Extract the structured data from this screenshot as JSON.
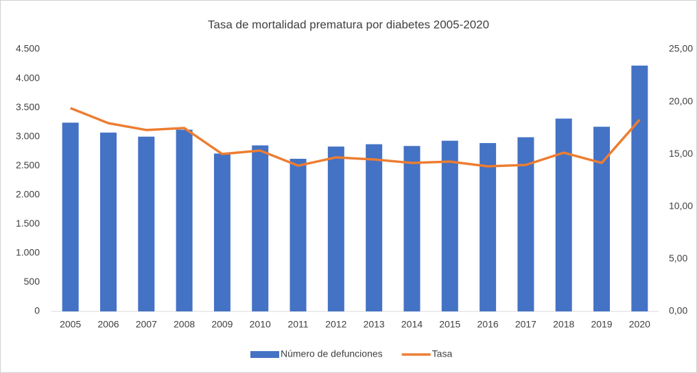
{
  "chart_data": {
    "type": "bar-line",
    "title": "Tasa de mortalidad prematura por diabetes 2005-2020",
    "categories": [
      "2005",
      "2006",
      "2007",
      "2008",
      "2009",
      "2010",
      "2011",
      "2012",
      "2013",
      "2014",
      "2015",
      "2016",
      "2017",
      "2018",
      "2019",
      "2020"
    ],
    "series": [
      {
        "name": "Número de defunciones",
        "type": "bar",
        "color": "#4472c4",
        "values": [
          3240,
          3070,
          3000,
          3120,
          2710,
          2850,
          2620,
          2830,
          2870,
          2840,
          2930,
          2890,
          2990,
          3310,
          3170,
          4220
        ]
      },
      {
        "name": "Tasa",
        "type": "line",
        "axis": "y2",
        "color": "#ed7d31",
        "values": [
          19.39,
          17.95,
          17.3,
          17.49,
          15.01,
          15.34,
          13.9,
          14.69,
          14.49,
          14.16,
          14.29,
          13.84,
          13.97,
          15.14,
          14.16,
          18.28
        ]
      }
    ],
    "ylim": [
      0,
      4500
    ],
    "yticks": [
      0,
      {
        "value": 500,
        "label": "500"
      },
      {
        "value": 1000,
        "label": "1.000"
      },
      {
        "value": 1500,
        "label": "1.500"
      },
      {
        "value": 2000,
        "label": "2.000"
      },
      {
        "value": 2500,
        "label": "2.500"
      },
      {
        "value": 3000,
        "label": "3.000"
      },
      {
        "value": 3500,
        "label": "3.500"
      },
      {
        "value": 4000,
        "label": "4.000"
      },
      {
        "value": 4500,
        "label": "4.500"
      }
    ],
    "y2lim": [
      0,
      25
    ],
    "y2ticks": [
      {
        "value": 0,
        "label": "0,00"
      },
      {
        "value": 5,
        "label": "5,00"
      },
      {
        "value": 10,
        "label": "10,00"
      },
      {
        "value": 15,
        "label": "15,00"
      },
      {
        "value": 20,
        "label": "20,00"
      },
      {
        "value": 25,
        "label": "25,00"
      }
    ],
    "grid": false,
    "legend": "bottom"
  }
}
